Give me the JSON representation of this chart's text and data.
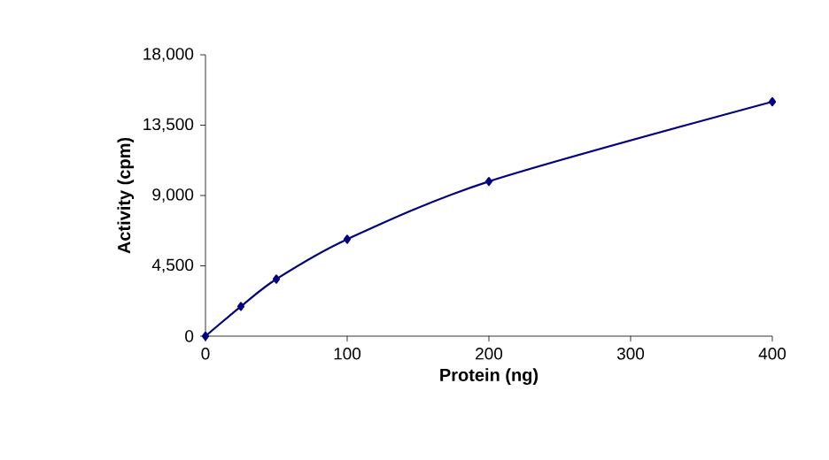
{
  "chart_data": {
    "type": "line",
    "xlabel": "Protein (ng)",
    "ylabel": "Activity (cpm)",
    "x": [
      0,
      25,
      50,
      100,
      200,
      400
    ],
    "series": [
      {
        "color": "#000080",
        "values": [
          0,
          1900,
          3650,
          6200,
          9900,
          15000
        ]
      }
    ],
    "xlim": [
      0,
      400
    ],
    "xticks": [
      0,
      100,
      200,
      300,
      400
    ],
    "ylim": [
      0,
      18000
    ],
    "yticks": [
      {
        "value": 0,
        "label": "0"
      },
      {
        "value": 4500,
        "label": "4,500"
      },
      {
        "value": 9000,
        "label": "9,000"
      },
      {
        "value": 13500,
        "label": "13,500"
      },
      {
        "value": 18000,
        "label": "18,000"
      }
    ],
    "marker": "diamond",
    "line_style": "solid",
    "grid": false
  }
}
